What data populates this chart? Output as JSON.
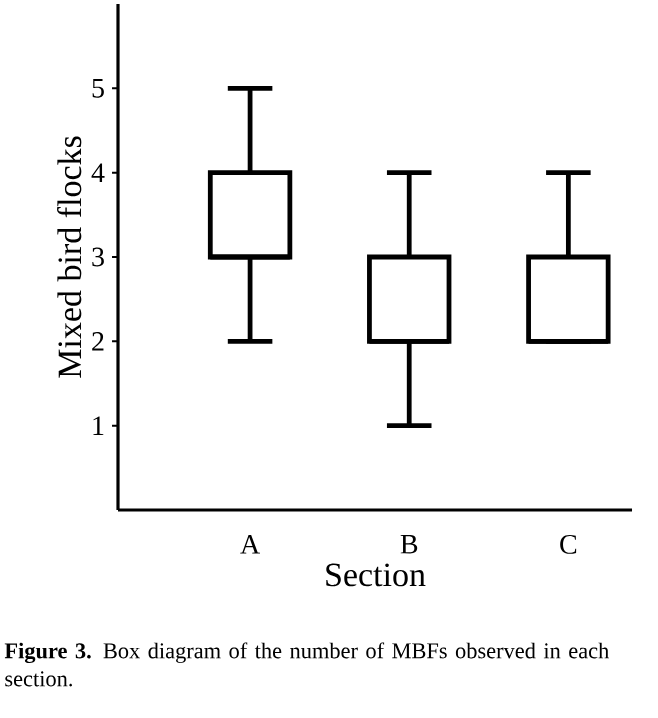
{
  "chart_data": {
    "type": "box",
    "xlabel": "Section",
    "ylabel": "Mixed bird flocks",
    "categories": [
      "A",
      "B",
      "C"
    ],
    "color": "#000000",
    "boxes": [
      {
        "low": 2,
        "q1": 3,
        "median": 3,
        "q3": 4,
        "high": 5
      },
      {
        "low": 1,
        "q1": 2,
        "median": 2,
        "q3": 3,
        "high": 4
      },
      {
        "low": 2,
        "q1": 2,
        "median": 2,
        "q3": 3,
        "high": 4
      }
    ],
    "ylim": [
      0,
      6
    ],
    "yticks": [
      1,
      2,
      3,
      4,
      5
    ],
    "annotations": [
      "**Figure 3.** Box diagram of the number of MBFs observed in each section."
    ]
  }
}
